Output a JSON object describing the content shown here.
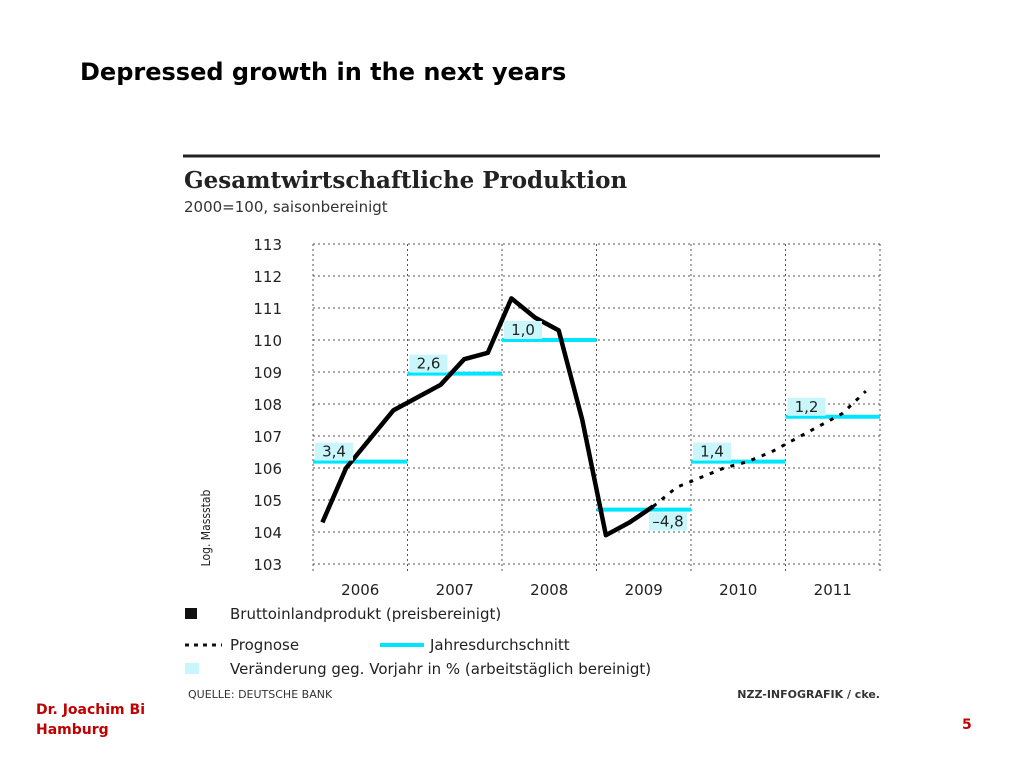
{
  "slide": {
    "title": "Depressed growth in the next years",
    "footer_line1": "Dr. Joachim Bi",
    "footer_line2": "Hamburg",
    "page_number": "5"
  },
  "chart_data": {
    "type": "line",
    "title": "Gesamtwirtschaftliche Produktion",
    "subtitle": "2000=100, saisonbereinigt",
    "ylabel": "Log. Massstab",
    "ylim": [
      103,
      113
    ],
    "yticks": [
      103,
      104,
      105,
      106,
      107,
      108,
      109,
      110,
      111,
      112,
      113
    ],
    "xlim": [
      2006,
      2012
    ],
    "xticks": [
      {
        "label": "2006",
        "pos": 2006.5
      },
      {
        "label": "2007",
        "pos": 2007.5
      },
      {
        "label": "2008",
        "pos": 2008.5
      },
      {
        "label": "2009",
        "pos": 2009.5
      },
      {
        "label": "2010",
        "pos": 2010.5
      },
      {
        "label": "2011",
        "pos": 2011.5
      }
    ],
    "grid": true,
    "series": [
      {
        "name": "Bruttoinlandprodukt (preisbereinigt)",
        "style": "solid",
        "color": "#000000",
        "x": [
          2006.1,
          2006.35,
          2006.6,
          2006.85,
          2007.1,
          2007.35,
          2007.6,
          2007.85,
          2008.1,
          2008.35,
          2008.6,
          2008.85,
          2009.1,
          2009.35,
          2009.6
        ],
        "y": [
          104.3,
          106.0,
          106.9,
          107.8,
          108.2,
          108.6,
          109.4,
          109.6,
          111.3,
          110.7,
          110.3,
          107.5,
          103.9,
          104.3,
          104.8
        ]
      },
      {
        "name": "Prognose",
        "style": "dotted",
        "color": "#000000",
        "x": [
          2009.6,
          2009.85,
          2010.1,
          2010.35,
          2010.6,
          2010.85,
          2011.1,
          2011.35,
          2011.6,
          2011.85
        ],
        "y": [
          104.8,
          105.4,
          105.7,
          106.0,
          106.2,
          106.5,
          106.9,
          107.3,
          107.7,
          108.4
        ]
      }
    ],
    "annual_averages": [
      {
        "year": 2006,
        "level": 106.2,
        "change": "3,4"
      },
      {
        "year": 2007,
        "level": 108.95,
        "change": "2,6"
      },
      {
        "year": 2008,
        "level": 110.0,
        "change": "1,0"
      },
      {
        "year": 2009,
        "level": 104.7,
        "change": "–4,8"
      },
      {
        "year": 2010,
        "level": 106.2,
        "change": "1,4"
      },
      {
        "year": 2011,
        "level": 107.6,
        "change": "1,2"
      }
    ],
    "legend": [
      {
        "symbol": "square",
        "label": "Bruttoinlandprodukt  (preisbereinigt)"
      },
      {
        "symbol": "dotted",
        "label": "Prognose"
      },
      {
        "symbol": "cyan-line",
        "label": "Jahresdurchschnitt"
      },
      {
        "symbol": "cyan-square",
        "label": "Veränderung geg. Vorjahr in % (arbeitstäglich bereinigt)"
      }
    ],
    "legend_position": "bottom",
    "source": "QUELLE: DEUTSCHE BANK",
    "credit": "NZZ-INFOGRAFIK / cke.",
    "colors": {
      "average_line": "#00e5ff",
      "label_box": "#c8f6fb",
      "grid": "#555555"
    }
  }
}
